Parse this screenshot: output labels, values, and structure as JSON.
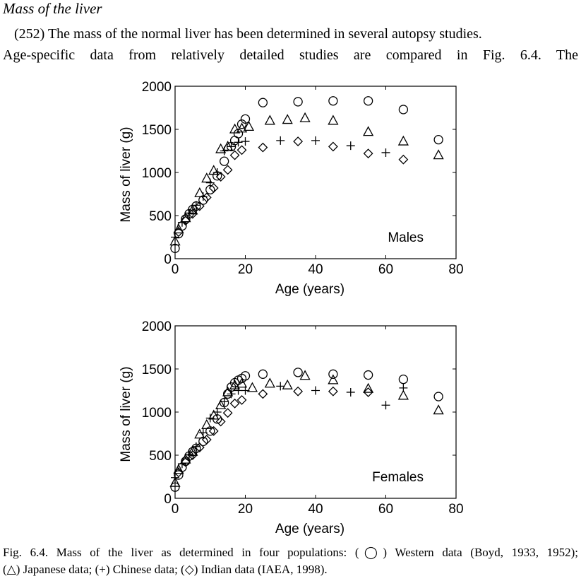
{
  "section_title": "Mass of the liver",
  "paragraph": {
    "line1": "(252) The mass of the normal liver has been determined in several autopsy studies.",
    "line2": "Age-specific data from relatively detailed studies are compared in Fig. 6.4. The"
  },
  "caption": {
    "line1": "Fig. 6.4. Mass of the liver as determined in four populations: (◯) Western data (Boyd, 1933, 1952);",
    "line2": "(△) Japanese data; (+) Chinese data; (◇) Indian data (IAEA, 1998)."
  },
  "chart_data": [
    {
      "type": "scatter",
      "panel_label": "Males",
      "xlabel": "Age (years)",
      "ylabel": "Mass of liver (g)",
      "xlim": [
        0,
        80
      ],
      "ylim": [
        0,
        2000
      ],
      "xticks": [
        "0",
        "20",
        "40",
        "60",
        "80"
      ],
      "yticks": [
        "0",
        "500",
        "1000",
        "1500",
        "2000"
      ],
      "grid": false,
      "series": [
        {
          "marker": "circle",
          "points": [
            [
              0,
              120
            ],
            [
              1,
              290
            ],
            [
              2,
              380
            ],
            [
              3,
              460
            ],
            [
              4,
              520
            ],
            [
              5,
              570
            ],
            [
              6,
              610
            ],
            [
              8,
              680
            ],
            [
              10,
              800
            ],
            [
              12,
              960
            ],
            [
              14,
              1130
            ],
            [
              16,
              1300
            ],
            [
              17,
              1370
            ],
            [
              18,
              1450
            ],
            [
              19,
              1560
            ],
            [
              20,
              1620
            ],
            [
              25,
              1810
            ],
            [
              35,
              1820
            ],
            [
              45,
              1830
            ],
            [
              55,
              1830
            ],
            [
              65,
              1730
            ],
            [
              75,
              1380
            ]
          ]
        },
        {
          "marker": "triangle",
          "points": [
            [
              0,
              200
            ],
            [
              1,
              340
            ],
            [
              3,
              470
            ],
            [
              5,
              560
            ],
            [
              7,
              760
            ],
            [
              9,
              930
            ],
            [
              11,
              1020
            ],
            [
              13,
              1270
            ],
            [
              15,
              1300
            ],
            [
              17,
              1500
            ],
            [
              19,
              1510
            ],
            [
              21,
              1530
            ],
            [
              27,
              1600
            ],
            [
              32,
              1610
            ],
            [
              37,
              1630
            ],
            [
              45,
              1600
            ],
            [
              55,
              1470
            ],
            [
              65,
              1360
            ],
            [
              75,
              1200
            ]
          ]
        },
        {
          "marker": "plus",
          "points": [
            [
              0,
              250
            ],
            [
              2,
              420
            ],
            [
              4,
              530
            ],
            [
              6,
              620
            ],
            [
              8,
              720
            ],
            [
              10,
              880
            ],
            [
              12,
              1000
            ],
            [
              14,
              1250
            ],
            [
              16,
              1300
            ],
            [
              18,
              1350
            ],
            [
              20,
              1360
            ],
            [
              30,
              1370
            ],
            [
              40,
              1370
            ],
            [
              50,
              1310
            ],
            [
              60,
              1230
            ]
          ]
        },
        {
          "marker": "diamond",
          "points": [
            [
              1,
              310
            ],
            [
              3,
              440
            ],
            [
              5,
              520
            ],
            [
              7,
              610
            ],
            [
              9,
              710
            ],
            [
              11,
              820
            ],
            [
              13,
              950
            ],
            [
              15,
              1030
            ],
            [
              17,
              1200
            ],
            [
              19,
              1260
            ],
            [
              25,
              1290
            ],
            [
              35,
              1360
            ],
            [
              45,
              1300
            ],
            [
              55,
              1220
            ],
            [
              65,
              1150
            ]
          ]
        }
      ]
    },
    {
      "type": "scatter",
      "panel_label": "Females",
      "xlabel": "Age (years)",
      "ylabel": "Mass of liver (g)",
      "xlim": [
        0,
        80
      ],
      "ylim": [
        0,
        2000
      ],
      "xticks": [
        "0",
        "20",
        "40",
        "60",
        "80"
      ],
      "yticks": [
        "0",
        "500",
        "1000",
        "1500",
        "2000"
      ],
      "grid": false,
      "series": [
        {
          "marker": "circle",
          "points": [
            [
              0,
              130
            ],
            [
              1,
              270
            ],
            [
              2,
              360
            ],
            [
              3,
              430
            ],
            [
              4,
              490
            ],
            [
              5,
              540
            ],
            [
              6,
              580
            ],
            [
              8,
              660
            ],
            [
              10,
              780
            ],
            [
              12,
              920
            ],
            [
              14,
              1110
            ],
            [
              15,
              1210
            ],
            [
              16,
              1290
            ],
            [
              17,
              1340
            ],
            [
              18,
              1370
            ],
            [
              19,
              1390
            ],
            [
              20,
              1420
            ],
            [
              25,
              1440
            ],
            [
              35,
              1460
            ],
            [
              45,
              1440
            ],
            [
              55,
              1430
            ],
            [
              65,
              1380
            ],
            [
              75,
              1180
            ]
          ]
        },
        {
          "marker": "triangle",
          "points": [
            [
              0,
              180
            ],
            [
              1,
              330
            ],
            [
              3,
              450
            ],
            [
              5,
              540
            ],
            [
              7,
              740
            ],
            [
              9,
              850
            ],
            [
              11,
              960
            ],
            [
              13,
              1080
            ],
            [
              15,
              1230
            ],
            [
              17,
              1310
            ],
            [
              19,
              1330
            ],
            [
              22,
              1280
            ],
            [
              27,
              1330
            ],
            [
              32,
              1310
            ],
            [
              37,
              1420
            ],
            [
              45,
              1370
            ],
            [
              55,
              1270
            ],
            [
              65,
              1190
            ],
            [
              75,
              1020
            ]
          ]
        },
        {
          "marker": "plus",
          "points": [
            [
              0,
              240
            ],
            [
              2,
              400
            ],
            [
              4,
              510
            ],
            [
              6,
              600
            ],
            [
              8,
              760
            ],
            [
              10,
              930
            ],
            [
              12,
              1000
            ],
            [
              14,
              1120
            ],
            [
              16,
              1210
            ],
            [
              18,
              1250
            ],
            [
              20,
              1250
            ],
            [
              30,
              1300
            ],
            [
              40,
              1250
            ],
            [
              50,
              1230
            ],
            [
              60,
              1080
            ],
            [
              65,
              1280
            ]
          ]
        },
        {
          "marker": "diamond",
          "points": [
            [
              1,
              300
            ],
            [
              3,
              420
            ],
            [
              5,
              500
            ],
            [
              7,
              590
            ],
            [
              9,
              680
            ],
            [
              11,
              780
            ],
            [
              13,
              890
            ],
            [
              15,
              990
            ],
            [
              17,
              1100
            ],
            [
              19,
              1140
            ],
            [
              25,
              1210
            ],
            [
              35,
              1240
            ],
            [
              45,
              1240
            ],
            [
              55,
              1230
            ]
          ]
        }
      ]
    }
  ]
}
